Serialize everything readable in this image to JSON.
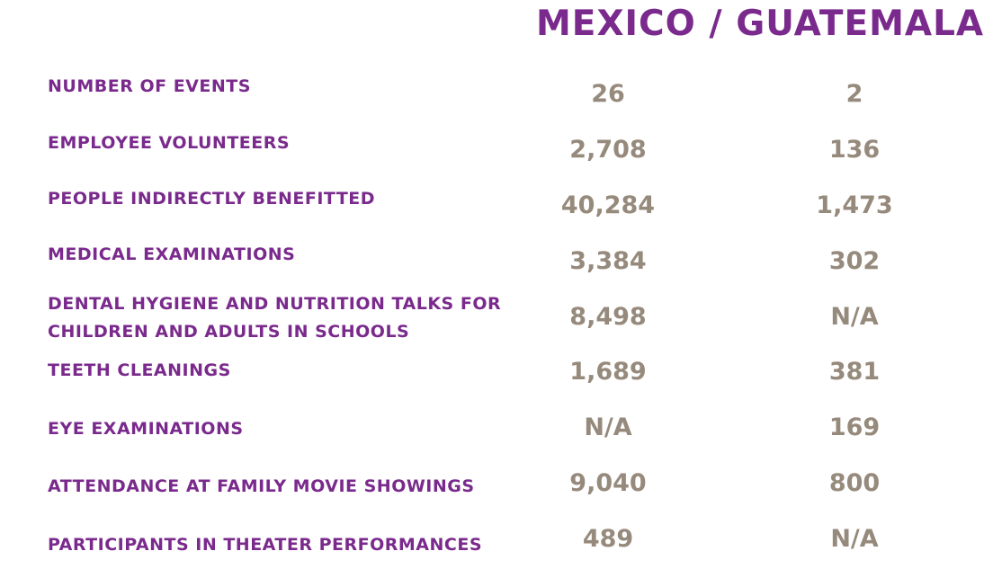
{
  "header": {
    "title": "MEXICO / GUATEMALA"
  },
  "colors": {
    "label_purple": "#7a2a8c",
    "value_taupe": "#968a7c"
  },
  "rows": [
    {
      "label": "NUMBER OF EVENTS",
      "mexico": "26",
      "guatemala": "2"
    },
    {
      "label": "EMPLOYEE VOLUNTEERS",
      "mexico": "2,708",
      "guatemala": "136"
    },
    {
      "label": "PEOPLE INDIRECTLY BENEFITTED",
      "mexico": "40,284",
      "guatemala": "1,473"
    },
    {
      "label": "MEDICAL EXAMINATIONS",
      "mexico": "3,384",
      "guatemala": "302"
    },
    {
      "label": "DENTAL HYGIENE AND NUTRITION TALKS FOR",
      "label_line2": "CHILDREN AND ADULTS IN SCHOOLS",
      "mexico": "8,498",
      "guatemala": "N/A"
    },
    {
      "label": "TEETH CLEANINGS",
      "mexico": "1,689",
      "guatemala": "381"
    },
    {
      "label": "EYE EXAMINATIONS",
      "mexico": "N/A",
      "guatemala": "169"
    },
    {
      "label": "ATTENDANCE AT FAMILY MOVIE SHOWINGS",
      "mexico": "9,040",
      "guatemala": "800"
    },
    {
      "label": "PARTICIPANTS IN THEATER PERFORMANCES",
      "mexico": "489",
      "guatemala": "N/A"
    }
  ]
}
